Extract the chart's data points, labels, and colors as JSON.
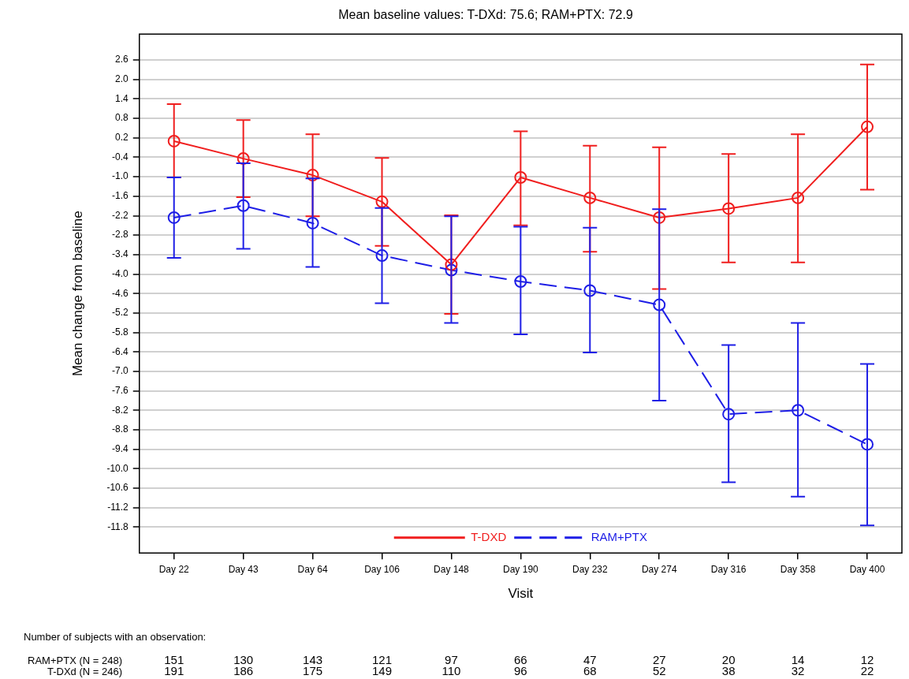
{
  "chart_data": {
    "type": "line",
    "title": "Mean baseline values: T-DXd: 75.6; RAM+PTX: 72.9",
    "xlabel": "Visit",
    "ylabel": "Mean change from baseline",
    "categories": [
      "Day 22",
      "Day 43",
      "Day 64",
      "Day 106",
      "Day 148",
      "Day 190",
      "Day 232",
      "Day 274",
      "Day 316",
      "Day 358",
      "Day 400"
    ],
    "series": [
      {
        "name": "T-DXD",
        "color": "#f01e1e",
        "line_style": "solid",
        "values": [
          0.1,
          -0.44,
          -0.95,
          -1.77,
          -3.71,
          -1.02,
          -1.65,
          -2.26,
          -1.98,
          -1.65,
          0.54
        ],
        "errors": [
          [
            -1.02,
            1.24
          ],
          [
            -1.63,
            0.75
          ],
          [
            -2.22,
            0.31
          ],
          [
            -3.13,
            -0.42
          ],
          [
            -5.23,
            -2.19
          ],
          [
            -2.5,
            0.4
          ],
          [
            -3.31,
            -0.04
          ],
          [
            -4.46,
            -0.09
          ],
          [
            -3.64,
            -0.3
          ],
          [
            -3.64,
            0.31
          ],
          [
            -1.4,
            2.46
          ]
        ]
      },
      {
        "name": "RAM+PTX",
        "color": "#1e1ee6",
        "line_style": "dashed",
        "values": [
          -2.26,
          -1.89,
          -2.43,
          -3.43,
          -3.88,
          -4.23,
          -4.51,
          -4.95,
          -8.32,
          -8.2,
          -9.25
        ],
        "errors": [
          [
            -3.5,
            -1.02
          ],
          [
            -3.22,
            -0.58
          ],
          [
            -3.78,
            -1.05
          ],
          [
            -4.9,
            -1.96
          ],
          [
            -5.51,
            -2.22
          ],
          [
            -5.86,
            -2.54
          ],
          [
            -6.42,
            -2.57
          ],
          [
            -7.9,
            -2.0
          ],
          [
            -10.42,
            -6.19
          ],
          [
            -10.86,
            -5.51
          ],
          [
            -11.75,
            -6.77
          ]
        ]
      }
    ],
    "ylim": [
      -12.6,
      3.4
    ],
    "yticks": [
      2.6,
      {
        "value": 2,
        "label": "2.0"
      },
      1.4,
      0.8,
      0.2,
      -0.4,
      {
        "value": -1,
        "label": "-1.0"
      },
      -1.6,
      -2.2,
      -2.8,
      -3.4,
      {
        "value": -4,
        "label": "-4.0"
      },
      -4.6,
      -5.2,
      -5.8,
      -6.4,
      {
        "value": -7,
        "label": "-7.0"
      },
      -7.6,
      -8.2,
      -8.8,
      -9.4,
      {
        "value": -10,
        "label": "-10.0"
      },
      -10.6,
      -11.2,
      -11.8
    ],
    "grid": "y",
    "legend": "bottom",
    "marker": "circle",
    "annotations": [
      "Number of subjects with an observation:",
      "RAM+PTX (N = 248)",
      "151",
      "130",
      "143",
      "121",
      "97",
      "66",
      "47",
      "27",
      "20",
      "14",
      "12",
      "T-DXd (N = 246)",
      "191",
      "186",
      "175",
      "149",
      "110",
      "96",
      "68",
      "52",
      "38",
      "32",
      "22"
    ]
  }
}
